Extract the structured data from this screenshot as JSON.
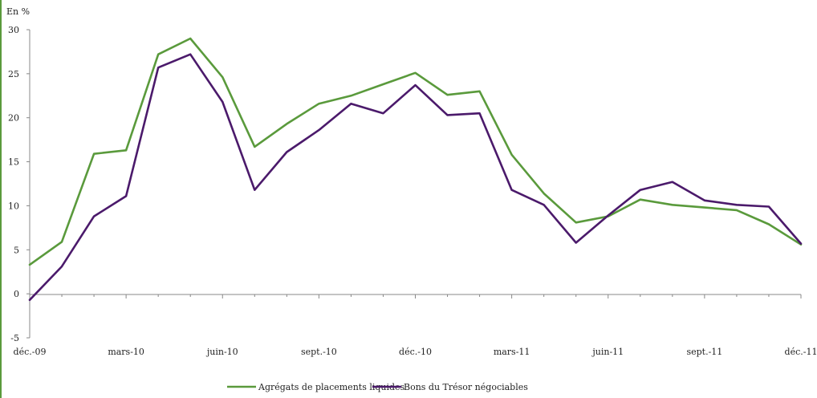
{
  "chart_data": {
    "type": "line",
    "ylabel": "En %",
    "ylim": [
      -5,
      30
    ],
    "yticks": [
      -5,
      0,
      5,
      10,
      15,
      20,
      25,
      30
    ],
    "x_tick_labels": [
      "déc.-09",
      "mars-10",
      "juin-10",
      "sept.-10",
      "déc.-10",
      "mars-11",
      "juin-11",
      "sept.-11",
      "déc.-11"
    ],
    "x": [
      "2009-12",
      "2010-01",
      "2010-02",
      "2010-03",
      "2010-04",
      "2010-05",
      "2010-06",
      "2010-07",
      "2010-08",
      "2010-09",
      "2010-10",
      "2010-11",
      "2010-12",
      "2011-01",
      "2011-02",
      "2011-03",
      "2011-04",
      "2011-05",
      "2011-06",
      "2011-07",
      "2011-08",
      "2011-09",
      "2011-10",
      "2011-11",
      "2011-12"
    ],
    "grid": false,
    "legend_position": "bottom",
    "series": [
      {
        "name": "Agrégats de placements liquides",
        "color": "#5a9a3c",
        "values": [
          3.3,
          5.9,
          15.9,
          16.3,
          27.2,
          29.0,
          24.6,
          16.7,
          19.3,
          21.6,
          22.5,
          23.8,
          25.1,
          22.6,
          23.0,
          15.8,
          11.4,
          8.1,
          8.8,
          10.7,
          10.1,
          9.8,
          9.5,
          7.9,
          5.6
        ]
      },
      {
        "name": "Bons du Trésor négociables",
        "color": "#4b1a6b",
        "values": [
          -0.7,
          3.1,
          8.8,
          11.1,
          25.7,
          27.2,
          21.8,
          11.8,
          16.1,
          18.6,
          21.6,
          20.5,
          23.7,
          20.3,
          20.5,
          11.8,
          10.1,
          5.8,
          8.9,
          11.8,
          12.7,
          10.6,
          10.1,
          9.9,
          5.7
        ]
      }
    ]
  }
}
